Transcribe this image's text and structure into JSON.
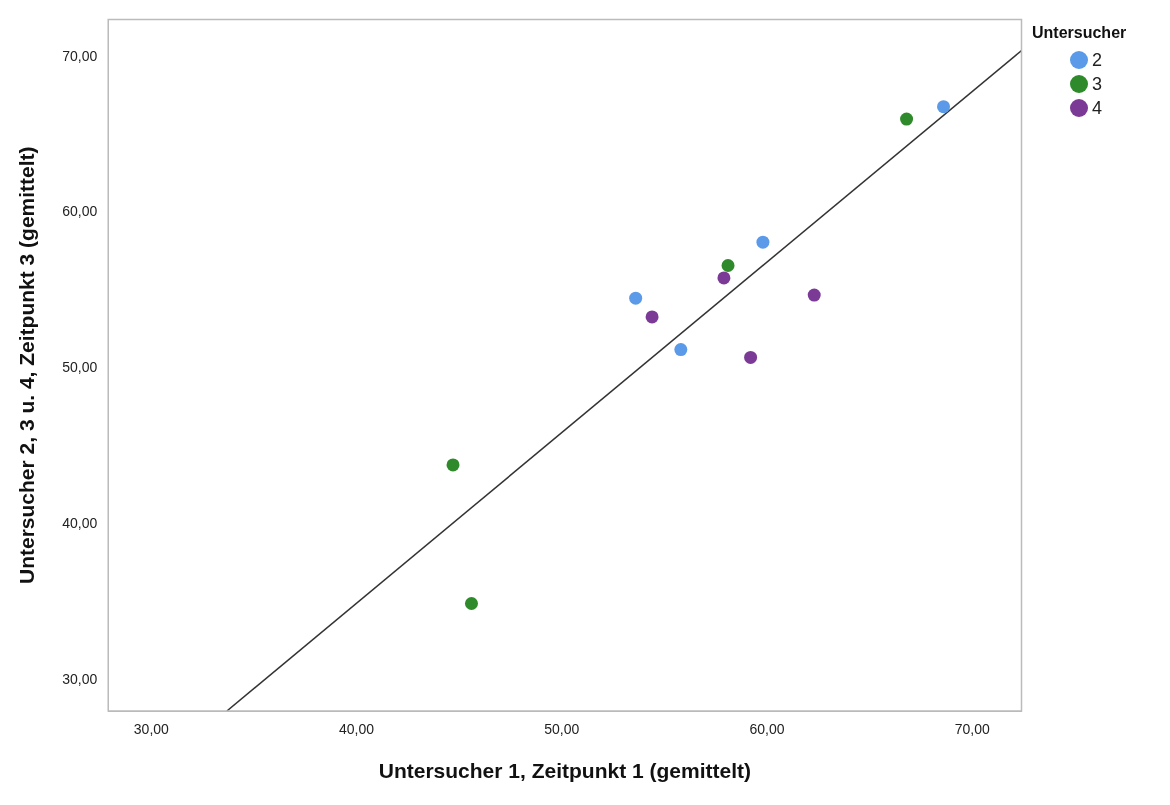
{
  "chart_data": {
    "type": "scatter",
    "xlabel": "Untersucher 1, Zeitpunkt 1 (gemittelt)",
    "ylabel": "Untersucher 2, 3 u. 4, Zeitpunkt 3 (gemittelt)",
    "legend_title": "Untersucher",
    "legend": "top right",
    "marker": "circle",
    "grid": false,
    "xlim": [
      27.9,
      72.4
    ],
    "ylim": [
      28,
      72.4
    ],
    "xticks": [
      {
        "value": 30,
        "label": "30,00"
      },
      {
        "value": 40,
        "label": "40,00"
      },
      {
        "value": 50,
        "label": "50,00"
      },
      {
        "value": 60,
        "label": "60,00"
      },
      {
        "value": 70,
        "label": "70,00"
      }
    ],
    "yticks": [
      {
        "value": 30,
        "label": "30,00"
      },
      {
        "value": 40,
        "label": "40,00"
      },
      {
        "value": 50,
        "label": "50,00"
      },
      {
        "value": 60,
        "label": "60,00"
      },
      {
        "value": 70,
        "label": "70,00"
      }
    ],
    "series": [
      {
        "name": "2",
        "color": "#5a9ae8",
        "x": [
          68.6,
          59.8,
          53.6,
          55.8
        ],
        "values": [
          66.8,
          58.1,
          54.5,
          51.2
        ]
      },
      {
        "name": "3",
        "color": "#2e8a2a",
        "x": [
          66.8,
          58.1,
          44.7,
          45.6
        ],
        "values": [
          66.0,
          56.6,
          43.8,
          34.9
        ]
      },
      {
        "name": "4",
        "color": "#7b3a96",
        "x": [
          57.9,
          54.4,
          62.3,
          59.2
        ],
        "values": [
          55.8,
          53.3,
          54.7,
          50.7
        ]
      },
      {
        "type": "line",
        "color": "#333333",
        "marker": "none",
        "x": [
          33.68,
          72.4
        ],
        "values": [
          28,
          70.4
        ]
      }
    ]
  }
}
